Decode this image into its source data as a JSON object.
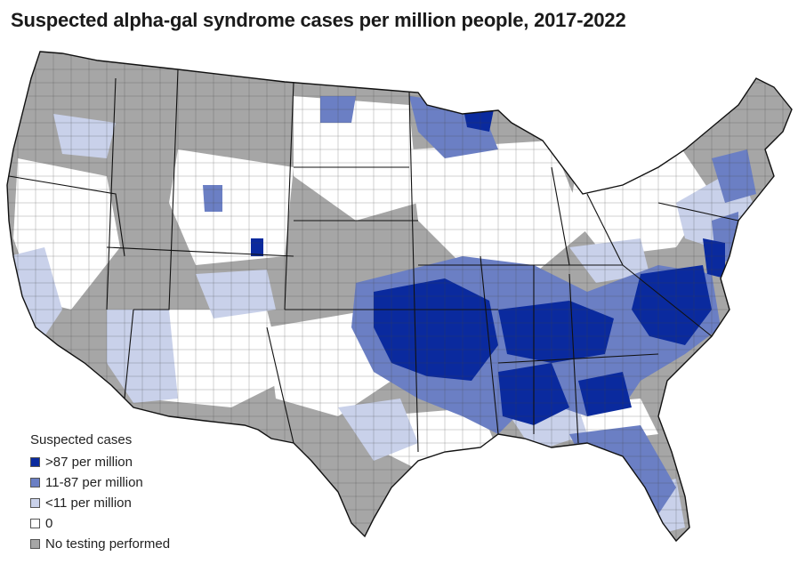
{
  "title": "Suspected alpha-gal syndrome cases per million people, 2017-2022",
  "legend": {
    "title": "Suspected cases",
    "items": [
      {
        "label": ">87 per million",
        "color": "#0a2a9e"
      },
      {
        "label": "11-87 per million",
        "color": "#6b7fc4"
      },
      {
        "label": "<11 per million",
        "color": "#c9d1ea"
      },
      {
        "label": "0",
        "color": "#ffffff"
      },
      {
        "label": "No testing performed",
        "color": "#a6a6a6"
      }
    ]
  },
  "colors": {
    "high": "#0a2a9e",
    "mid": "#6b7fc4",
    "low": "#c9d1ea",
    "zero": "#ffffff",
    "none": "#a6a6a6",
    "border": "#222222"
  }
}
